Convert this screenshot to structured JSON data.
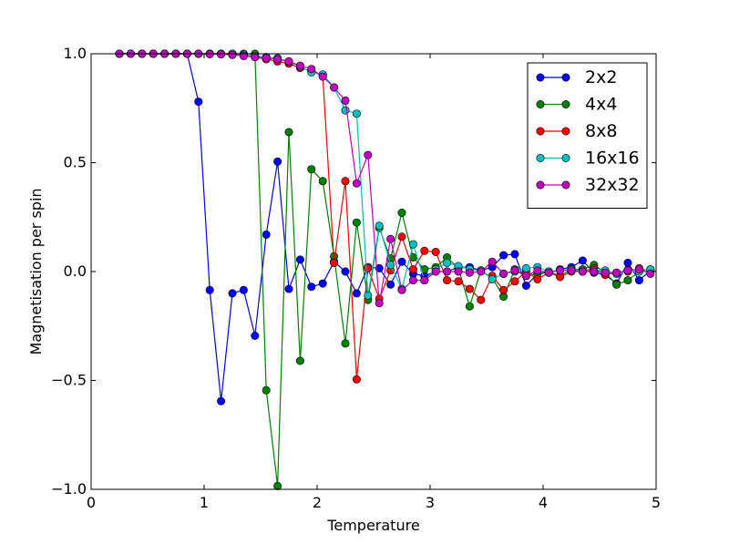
{
  "chart_data": {
    "type": "line",
    "title": "",
    "xlabel": "Temperature",
    "ylabel": "Magnetisation per spin",
    "xlim": [
      0,
      5
    ],
    "ylim": [
      -1.0,
      1.0
    ],
    "xticks": [
      0,
      1,
      2,
      3,
      4,
      5
    ],
    "xtick_labels": [
      "0",
      "1",
      "2",
      "3",
      "4",
      "5"
    ],
    "yticks": [
      -1.0,
      -0.5,
      0.0,
      0.5,
      1.0
    ],
    "ytick_labels": [
      "−1.0",
      "−0.5",
      "0.0",
      "0.5",
      "1.0"
    ],
    "grid": false,
    "legend_position": "top-right",
    "x": [
      0.25,
      0.35,
      0.45,
      0.55,
      0.65,
      0.75,
      0.85,
      0.95,
      1.05,
      1.15,
      1.25,
      1.35,
      1.45,
      1.55,
      1.65,
      1.75,
      1.85,
      1.95,
      2.05,
      2.15,
      2.25,
      2.35,
      2.45,
      2.55,
      2.65,
      2.75,
      2.85,
      2.95,
      3.05,
      3.15,
      3.25,
      3.35,
      3.45,
      3.55,
      3.65,
      3.75,
      3.85,
      3.95,
      4.05,
      4.15,
      4.25,
      4.35,
      4.45,
      4.55,
      4.65,
      4.75,
      4.85,
      4.95
    ],
    "series": [
      {
        "name": "2x2",
        "color": "#0000ff",
        "values": [
          1.0,
          1.0,
          1.0,
          1.0,
          1.0,
          1.0,
          1.0,
          0.78,
          -0.085,
          -0.595,
          -0.1,
          -0.085,
          -0.295,
          0.17,
          0.505,
          -0.08,
          0.055,
          -0.07,
          -0.055,
          0.045,
          0.0,
          -0.1,
          0.02,
          0.015,
          -0.06,
          0.045,
          -0.01,
          -0.02,
          0.0,
          0.0,
          0.02,
          0.02,
          0.005,
          0.02,
          0.075,
          0.08,
          -0.065,
          -0.01,
          -0.005,
          0.01,
          0.02,
          0.05,
          -0.005,
          -0.015,
          -0.055,
          0.04,
          -0.04,
          0.005
        ]
      },
      {
        "name": "4x4",
        "color": "#008000",
        "values": [
          1.0,
          1.0,
          1.0,
          1.0,
          1.0,
          1.0,
          1.0,
          1.0,
          1.0,
          1.0,
          1.0,
          1.0,
          1.0,
          -0.545,
          -0.985,
          0.64,
          -0.41,
          0.47,
          0.415,
          0.07,
          -0.33,
          0.225,
          -0.13,
          0.2,
          0.06,
          0.27,
          0.065,
          0.01,
          0.02,
          0.065,
          0.015,
          -0.16,
          0.005,
          -0.03,
          -0.115,
          0.01,
          -0.02,
          -0.01,
          0.0,
          -0.02,
          0.01,
          0.01,
          0.03,
          -0.005,
          -0.06,
          -0.04,
          0.0,
          0.01
        ]
      },
      {
        "name": "8x8",
        "color": "#ff0000",
        "values": [
          1.0,
          1.0,
          1.0,
          1.0,
          1.0,
          1.0,
          1.0,
          1.0,
          1.0,
          1.0,
          1.0,
          0.995,
          0.985,
          0.975,
          0.965,
          0.955,
          0.935,
          0.92,
          0.9,
          0.04,
          0.415,
          -0.495,
          0.015,
          -0.125,
          0.005,
          0.16,
          0.01,
          0.095,
          0.09,
          -0.04,
          -0.045,
          -0.08,
          -0.13,
          -0.02,
          -0.085,
          -0.045,
          0.0,
          -0.035,
          -0.005,
          -0.025,
          0.0,
          0.0,
          0.015,
          -0.015,
          -0.005,
          0.0,
          0.015,
          0.0
        ]
      },
      {
        "name": "16x16",
        "color": "#00bfbf",
        "values": [
          1.0,
          1.0,
          1.0,
          1.0,
          1.0,
          1.0,
          1.0,
          1.0,
          1.0,
          1.0,
          1.0,
          0.995,
          0.99,
          0.985,
          0.98,
          0.965,
          0.94,
          0.915,
          0.905,
          0.845,
          0.74,
          0.725,
          -0.11,
          0.21,
          0.03,
          -0.08,
          0.125,
          -0.04,
          0.01,
          0.04,
          0.025,
          0.01,
          0.005,
          -0.035,
          -0.01,
          0.0,
          0.015,
          0.02,
          0.0,
          0.005,
          0.01,
          0.0,
          0.005,
          0.005,
          -0.01,
          0.005,
          0.0,
          0.01
        ]
      },
      {
        "name": "32x32",
        "color": "#bf00bf",
        "values": [
          1.0,
          1.0,
          1.0,
          1.0,
          1.0,
          1.0,
          1.0,
          1.0,
          0.998,
          0.997,
          0.995,
          0.99,
          0.985,
          0.98,
          0.975,
          0.965,
          0.945,
          0.93,
          0.895,
          0.845,
          0.785,
          0.405,
          0.535,
          -0.145,
          0.15,
          -0.085,
          -0.04,
          -0.04,
          0.0,
          0.0,
          0.0,
          -0.005,
          0.0,
          0.045,
          -0.01,
          0.005,
          -0.02,
          0.005,
          -0.005,
          0.005,
          0.005,
          0.0,
          0.0,
          -0.005,
          -0.005,
          0.005,
          0.01,
          -0.01
        ]
      }
    ]
  }
}
